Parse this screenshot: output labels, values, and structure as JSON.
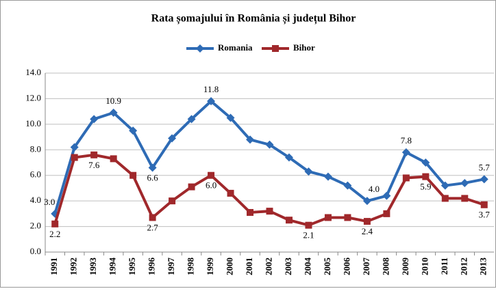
{
  "chart_data": {
    "type": "line",
    "title": "Rata șomajului în România și județul Bihor",
    "categories": [
      "1991",
      "1992",
      "1993",
      "1994",
      "1995",
      "1996",
      "1997",
      "1998",
      "1999",
      "2000",
      "2001",
      "2002",
      "2003",
      "2004",
      "2005",
      "2006",
      "2007",
      "2008",
      "2009",
      "2010",
      "2011",
      "2012",
      "2013"
    ],
    "series": [
      {
        "name": "Romania",
        "color": "#2e6bb5",
        "marker": "diamond",
        "values": [
          3.0,
          8.2,
          10.4,
          10.9,
          9.5,
          6.6,
          8.9,
          10.4,
          11.8,
          10.5,
          8.8,
          8.4,
          7.4,
          6.3,
          5.9,
          5.2,
          4.0,
          4.4,
          7.8,
          7.0,
          5.2,
          5.4,
          5.7
        ],
        "value_labels": [
          "3.0",
          null,
          null,
          "10.9",
          null,
          "6.6",
          null,
          null,
          "11.8",
          null,
          null,
          null,
          null,
          null,
          null,
          null,
          "4.0",
          null,
          "7.8",
          null,
          null,
          null,
          "5.7"
        ]
      },
      {
        "name": "Bihor",
        "color": "#a0282b",
        "marker": "square",
        "values": [
          2.2,
          7.4,
          7.6,
          7.3,
          6.0,
          2.7,
          4.0,
          5.1,
          6.0,
          4.6,
          3.1,
          3.2,
          2.5,
          2.1,
          2.7,
          2.7,
          2.4,
          3.0,
          5.8,
          5.9,
          4.2,
          4.2,
          3.7
        ],
        "value_labels": [
          "2.2",
          null,
          "7.6",
          null,
          null,
          "2.7",
          null,
          null,
          "6.0",
          null,
          null,
          null,
          null,
          "2.1",
          null,
          null,
          "2.4",
          null,
          null,
          "5.9",
          null,
          null,
          "3.7"
        ]
      }
    ],
    "ylim": [
      0,
      14
    ],
    "yticks": [
      {
        "value": 0,
        "label": "0.0"
      },
      {
        "value": 2,
        "label": "2.0"
      },
      {
        "value": 4,
        "label": "4.0"
      },
      {
        "value": 6,
        "label": "6.0"
      },
      {
        "value": 8,
        "label": "8.0"
      },
      {
        "value": 10,
        "label": "10.0"
      },
      {
        "value": 12,
        "label": "12.0"
      },
      {
        "value": 14,
        "label": "14.0"
      }
    ],
    "grid": true,
    "legend": "top"
  }
}
